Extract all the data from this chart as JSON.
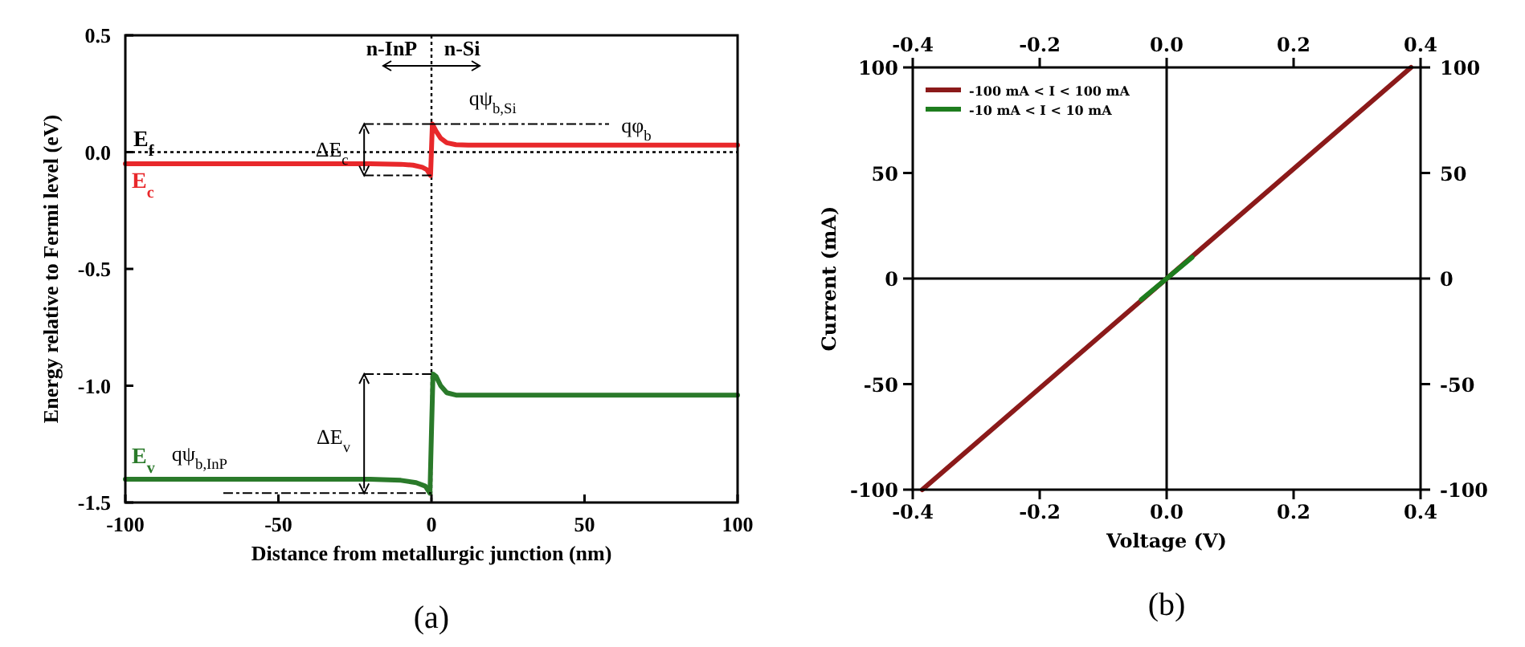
{
  "chart_data": [
    {
      "type": "line",
      "xlabel": "Distance from metallurgic junction (nm)",
      "ylabel": "Energy relative to Fermi level (eV)",
      "xlim": [
        -100,
        100
      ],
      "xticks": [
        -100,
        -50,
        0,
        50,
        100
      ],
      "ylim": [
        -1.5,
        0.5
      ],
      "yticks": [
        {
          "value": -1.5,
          "label": "-1.5"
        },
        {
          "value": -1,
          "label": "-1.0"
        },
        {
          "value": -0.5,
          "label": "-0.5"
        },
        {
          "value": 0,
          "label": "0.0"
        },
        {
          "value": 0.5,
          "label": "0.5"
        }
      ],
      "grid": false,
      "legend": false,
      "series": [
        {
          "name": "E$_{c}$",
          "color": "#e8282b",
          "x": [
            -100,
            -20,
            -10,
            -6,
            -3,
            -1.5,
            -0.3,
            0.3,
            1.5,
            3,
            5,
            8,
            12,
            20,
            100
          ],
          "values": [
            -0.05,
            -0.05,
            -0.052,
            -0.056,
            -0.065,
            -0.075,
            -0.1,
            0.12,
            0.09,
            0.06,
            0.04,
            0.032,
            0.03,
            0.03,
            0.03
          ]
        },
        {
          "name": "E$_{v}$",
          "color": "#2a7a2a",
          "x": [
            -100,
            -20,
            -10,
            -5,
            -2,
            -0.5,
            0,
            0.5,
            1.5,
            3,
            5,
            8,
            12,
            100
          ],
          "values": [
            -1.4,
            -1.4,
            -1.405,
            -1.415,
            -1.43,
            -1.46,
            -1.2,
            -0.95,
            -0.96,
            -1.0,
            -1.03,
            -1.04,
            -1.04,
            -1.04
          ]
        }
      ],
      "ref_lines": [
        {
          "axis": "y",
          "value": 0,
          "label": "E$_{f}$",
          "color": "#000000",
          "line_style": "dotted"
        },
        {
          "axis": "x",
          "value": 0,
          "label": null,
          "color": "#000000",
          "line_style": "dotted"
        }
      ],
      "annotations": [
        "n-InP",
        "n-Si",
        {
          "text": "ΔE$_{c}$",
          "x": -22,
          "y": 0.01
        },
        "qψ$_{b,Si}$",
        {
          "text": "qφ$_{b}$",
          "x": 58,
          "y": 0.03
        },
        "ΔE$_{v}$",
        {
          "text": "qψ$_{b,InP}$",
          "x": -60,
          "y": -1.43
        },
        "(a)"
      ]
    },
    {
      "type": "line",
      "xlabel": "Voltage (V)",
      "ylabel": "Current (mA)",
      "xlim": [
        -0.4,
        0.4
      ],
      "xticks": [
        -0.4,
        -0.2,
        {
          "value": 0,
          "label": "0.0"
        },
        0.2,
        0.4
      ],
      "x2lim": [
        -0.4,
        0.4
      ],
      "x2ticks": [
        -0.4,
        -0.2,
        {
          "value": 0,
          "label": "0.0"
        },
        0.2,
        0.4
      ],
      "ylim": [
        -100,
        100
      ],
      "yticks": [
        -100,
        -50,
        0,
        50,
        100
      ],
      "y2lim": [
        -100,
        100
      ],
      "y2ticks": [
        -100,
        -50,
        0,
        50,
        100
      ],
      "grid": false,
      "legend": "top left",
      "series": [
        {
          "name": "-100 mA < I < 100 mA",
          "color": "#8b1a1a",
          "x": [
            -0.385,
            0.385
          ],
          "values": [
            -100,
            100
          ]
        },
        {
          "name": "-10 mA < I < 10 mA",
          "color": "#1e7d1e",
          "x": [
            -0.04,
            0.04
          ],
          "values": [
            -10,
            10
          ]
        }
      ],
      "ref_lines": [
        {
          "axis": "x",
          "value": 0,
          "label": null,
          "color": "#000000",
          "line_style": "solid"
        },
        {
          "axis": "y",
          "value": 0,
          "label": null,
          "color": "#000000",
          "line_style": "solid"
        }
      ],
      "annotations": [
        "(b)"
      ]
    }
  ]
}
